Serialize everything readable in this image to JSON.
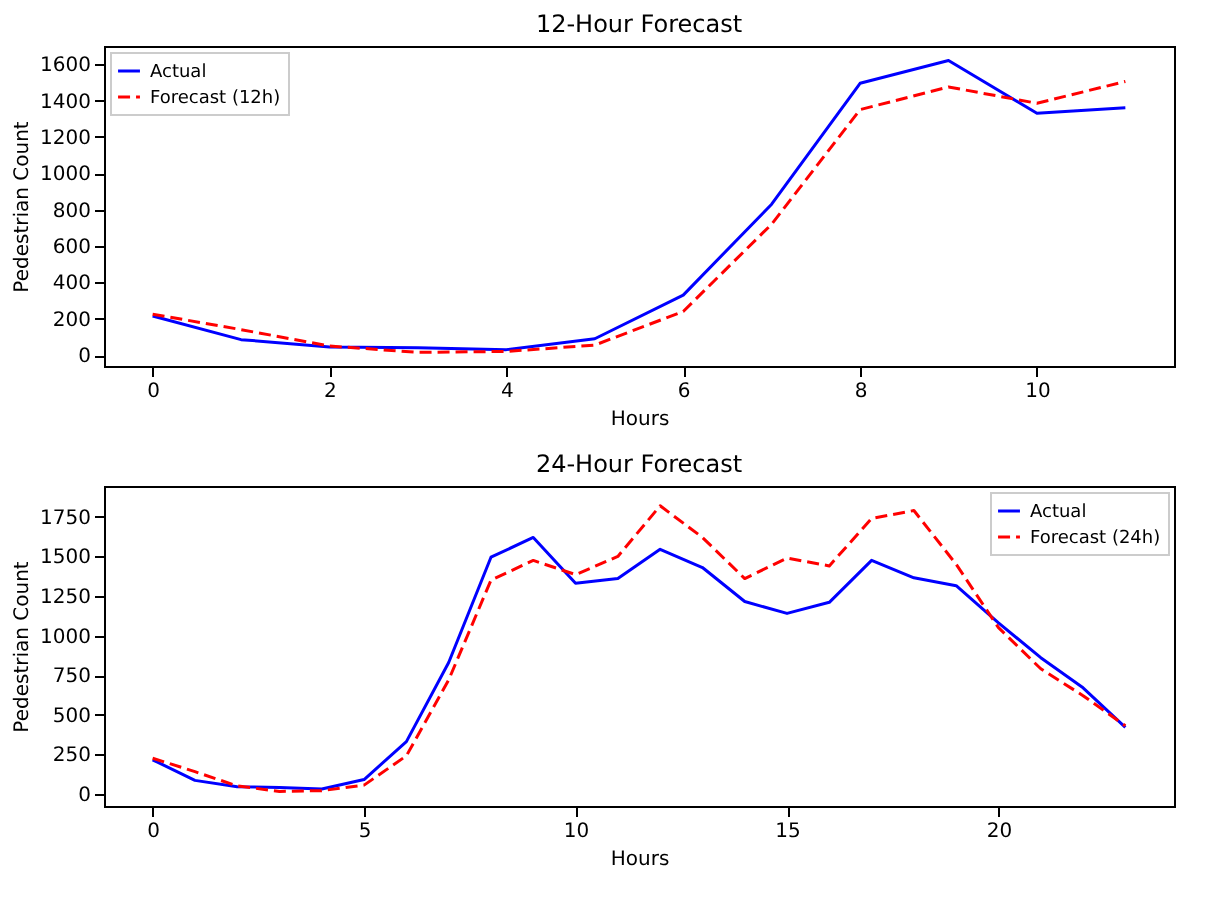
{
  "chart_data": [
    {
      "type": "line",
      "title": "12-Hour Forecast",
      "xlabel": "Hours",
      "ylabel": "Pedestrian Count",
      "x": [
        0,
        1,
        2,
        3,
        4,
        5,
        6,
        7,
        8,
        9,
        10,
        11
      ],
      "xlim": [
        -0.55,
        11.55
      ],
      "xticks": [
        0,
        2,
        4,
        6,
        8,
        10
      ],
      "ylim": [
        -60,
        1700
      ],
      "yticks": [
        0,
        200,
        400,
        600,
        800,
        1000,
        1200,
        1400,
        1600
      ],
      "legend": "top left",
      "grid": false,
      "series": [
        {
          "name": "Actual",
          "color": "#0000ff",
          "line_style": "solid",
          "values": [
            215,
            85,
            45,
            40,
            30,
            90,
            330,
            830,
            1495,
            1620,
            1330,
            1360
          ]
        },
        {
          "name": "Forecast (12h)",
          "color": "#ff0000",
          "line_style": "dashed",
          "values": [
            225,
            140,
            50,
            15,
            20,
            55,
            240,
            720,
            1350,
            1475,
            1385,
            1505
          ]
        }
      ]
    },
    {
      "type": "line",
      "title": "24-Hour Forecast",
      "xlabel": "Hours",
      "ylabel": "Pedestrian Count",
      "x": [
        0,
        1,
        2,
        3,
        4,
        5,
        6,
        7,
        8,
        9,
        10,
        11,
        12,
        13,
        14,
        15,
        16,
        17,
        18,
        19,
        20,
        21,
        22,
        23
      ],
      "xlim": [
        -1.15,
        24.15
      ],
      "xticks": [
        0,
        5,
        10,
        15,
        20
      ],
      "ylim": [
        -77,
        1945
      ],
      "yticks": [
        0,
        250,
        500,
        750,
        1000,
        1250,
        1500,
        1750
      ],
      "legend": "top right",
      "grid": false,
      "series": [
        {
          "name": "Actual",
          "color": "#0000ff",
          "line_style": "solid",
          "values": [
            215,
            85,
            45,
            40,
            30,
            90,
            330,
            830,
            1495,
            1620,
            1330,
            1360,
            1545,
            1430,
            1215,
            1140,
            1210,
            1475,
            1365,
            1315,
            1080,
            860,
            670,
            420
          ]
        },
        {
          "name": "Forecast (24h)",
          "color": "#ff0000",
          "line_style": "dashed",
          "values": [
            225,
            140,
            50,
            15,
            20,
            55,
            240,
            720,
            1350,
            1475,
            1385,
            1500,
            1820,
            1620,
            1360,
            1490,
            1440,
            1740,
            1790,
            1450,
            1050,
            790,
            620,
            430
          ]
        }
      ]
    }
  ]
}
